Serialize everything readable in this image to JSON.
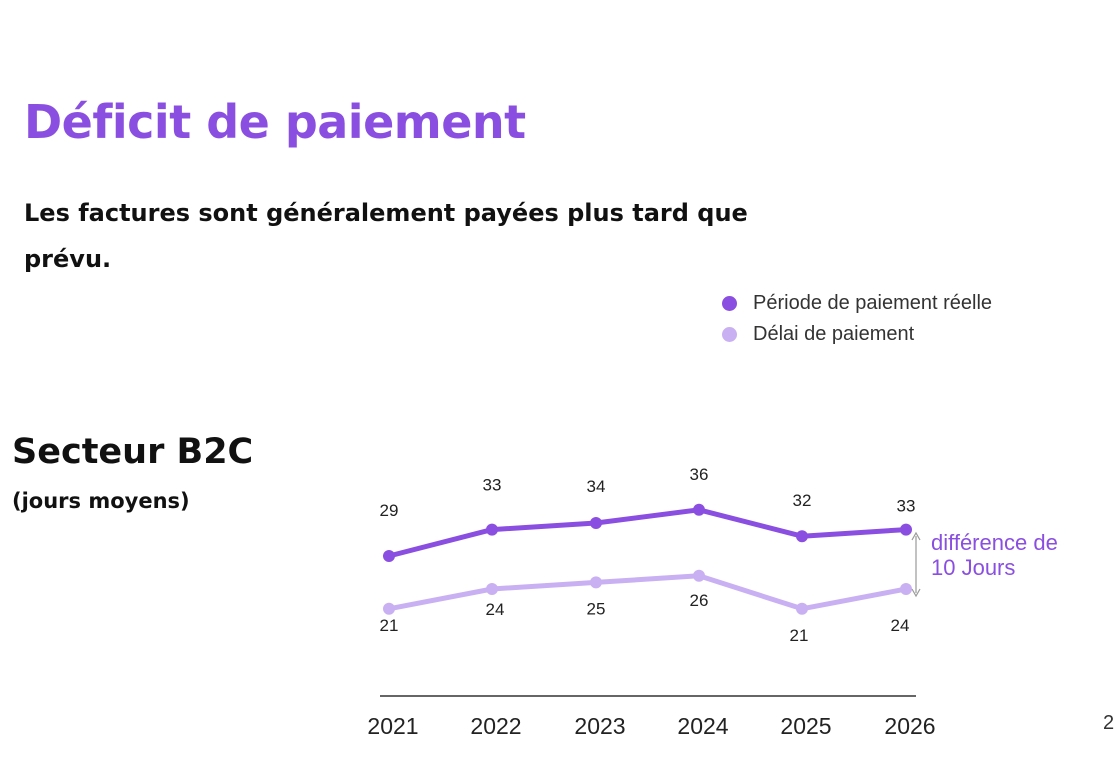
{
  "header": {
    "title": "Déficit de paiement",
    "subtitle": "Les factures sont généralement payées plus tard que prévu."
  },
  "section": {
    "title": "Secteur B2C",
    "subtitle": "(jours moyens)"
  },
  "colors": {
    "accent": "#8a4fe0",
    "series_dark": "#8a4fe0",
    "series_light": "#c9b0f2"
  },
  "edge_glyph": "2",
  "chart_data": {
    "type": "line",
    "categories": [
      "2021",
      "2022",
      "2023",
      "2024",
      "2025",
      "2026"
    ],
    "series": [
      {
        "name": "Période de paiement réelle",
        "values": [
          29,
          33,
          34,
          36,
          32,
          33
        ],
        "color": "#8a4fe0"
      },
      {
        "name": "Délai de paiement",
        "values": [
          21,
          24,
          25,
          26,
          21,
          24
        ],
        "color": "#c9b0f2"
      }
    ],
    "legend_position": "top-right",
    "annotation": {
      "line1": "différence de",
      "line2": "10 Jours"
    },
    "grid": false
  }
}
